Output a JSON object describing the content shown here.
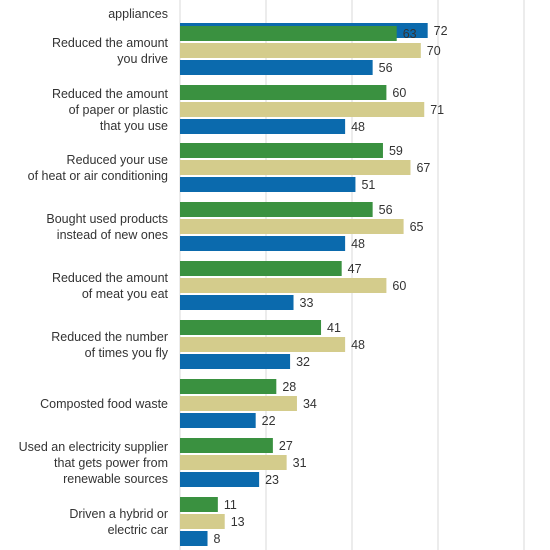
{
  "chart_data": {
    "type": "bar",
    "orientation": "horizontal",
    "grid": true,
    "categories": [
      [
        "appliances"
      ],
      [
        "Reduced the amount",
        "you drive"
      ],
      [
        "Reduced the amount",
        "of paper or plastic",
        "that you use"
      ],
      [
        "Reduced your use",
        "of heat or air conditioning"
      ],
      [
        "Bought used products",
        "instead of new ones"
      ],
      [
        "Reduced the amount",
        "of meat you eat"
      ],
      [
        "Reduced the number",
        "of times you fly"
      ],
      [
        "Composted food waste"
      ],
      [
        "Used an electricity supplier",
        "that gets power from",
        "renewable sources"
      ],
      [
        "Driven a hybrid or",
        "electric car"
      ]
    ],
    "series": [
      {
        "color": "#3a9140",
        "values": [
          null,
          63,
          60,
          59,
          56,
          47,
          41,
          28,
          27,
          11
        ]
      },
      {
        "color": "#d4cc8c",
        "values": [
          null,
          70,
          71,
          67,
          65,
          60,
          48,
          34,
          31,
          13
        ]
      },
      {
        "color": "#0b6aad",
        "values": [
          72,
          56,
          48,
          51,
          48,
          33,
          32,
          22,
          23,
          8
        ]
      }
    ],
    "xlim": [
      0,
      100
    ]
  }
}
